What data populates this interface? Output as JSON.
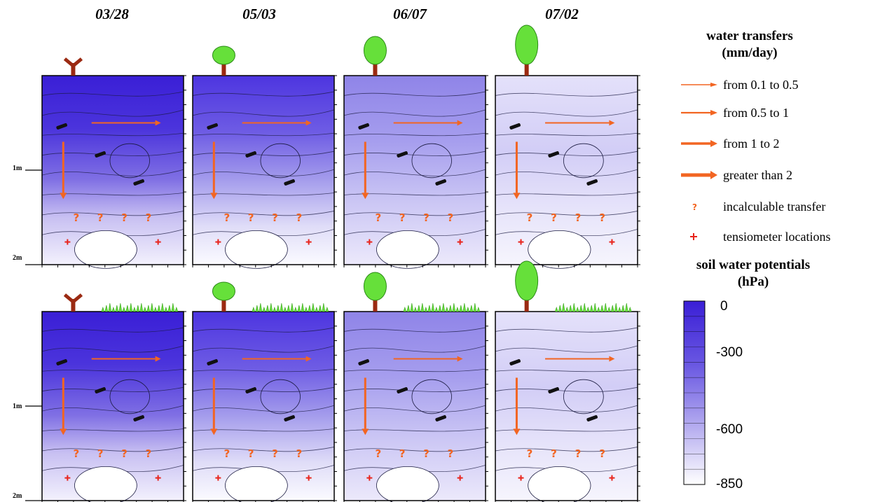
{
  "chart_data": {
    "type": "heatmap",
    "dates": [
      "03/28",
      "05/03",
      "06/07",
      "07/02"
    ],
    "depth_tick_labels": [
      "1m",
      "2m"
    ],
    "legend": {
      "transfers_title": "water transfers",
      "transfers_unit": "(mm/day)",
      "entries": [
        {
          "label": "from 0.1 to 0.5",
          "symbol": "arrow-thin"
        },
        {
          "label": "from 0.5 to 1",
          "symbol": "arrow-medium"
        },
        {
          "label": "from 1 to 2",
          "symbol": "arrow-thick"
        },
        {
          "label": "greater than 2",
          "symbol": "arrow-thickest"
        },
        {
          "label": "incalculable transfer",
          "symbol": "question-mark"
        },
        {
          "label": "tensiometer locations",
          "symbol": "red-cross"
        }
      ],
      "potentials_title": "soil water potentials",
      "potentials_unit": "(hPa)",
      "colorbar_ticks": [
        "0",
        "-300",
        "-600",
        "-850"
      ],
      "colorbar_range": [
        0,
        -850
      ]
    },
    "colors": {
      "wet": "#3a1fd6",
      "dry": "#ffffff",
      "arrow": "#f26522",
      "cross": "#e8241c",
      "tree_trunk": "#9b2a12",
      "canopy": "#66e03a"
    }
  }
}
